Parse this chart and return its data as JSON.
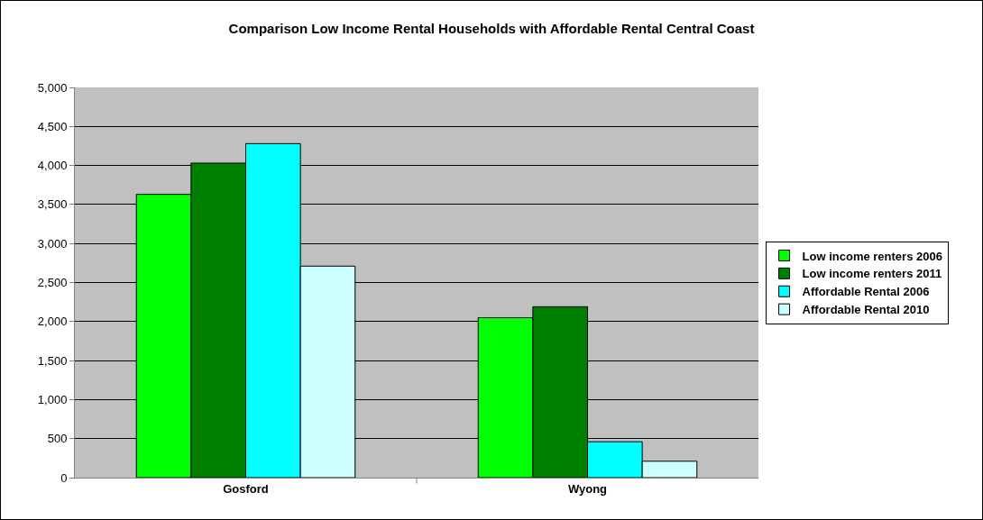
{
  "chart_data": {
    "type": "bar",
    "title": "Comparison Low Income Rental Households with Affordable Rental Central Coast",
    "categories": [
      "Gosford",
      "Wyong"
    ],
    "series": [
      {
        "name": "Low income renters 2006",
        "color": "#00ff00",
        "values": [
          3630,
          2050
        ]
      },
      {
        "name": "Low income renters 2011",
        "color": "#008000",
        "values": [
          4030,
          2190
        ]
      },
      {
        "name": "Affordable Rental 2006",
        "color": "#00ffff",
        "values": [
          4280,
          460
        ]
      },
      {
        "name": "Affordable Rental 2010",
        "color": "#ccffff",
        "values": [
          2710,
          210
        ]
      }
    ],
    "ylim": [
      0,
      5000
    ],
    "yticks": [
      {
        "value": 0,
        "label": "0"
      },
      {
        "value": 500,
        "label": "500"
      },
      {
        "value": 1000,
        "label": "1,000"
      },
      {
        "value": 1500,
        "label": "1,500"
      },
      {
        "value": 2000,
        "label": "2,000"
      },
      {
        "value": 2500,
        "label": "2,500"
      },
      {
        "value": 3000,
        "label": "3,000"
      },
      {
        "value": 3500,
        "label": "3,500"
      },
      {
        "value": 4000,
        "label": "4,000"
      },
      {
        "value": 4500,
        "label": "4,500"
      },
      {
        "value": 5000,
        "label": "5,000"
      }
    ],
    "grid": "y",
    "legend": "right"
  }
}
